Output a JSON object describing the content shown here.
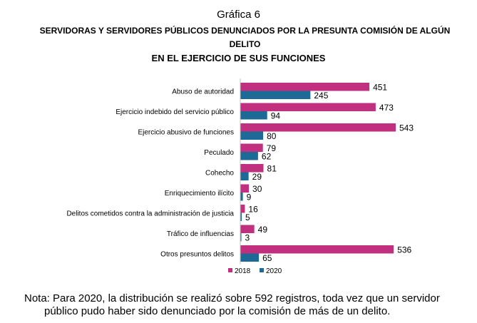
{
  "kicker": "Gráfica 6",
  "title_line1": "SERVIDORAS Y SERVIDORES PÚBLICOS DENUNCIADOS POR LA PRESUNTA COMISIÓN DE ALGÚN DELITO",
  "title_line2": "EN EL EJERCICIO DE SUS FUNCIONES",
  "note_line1": "Nota: Para 2020, la distribución se realizó sobre 592 registros, toda vez que un servidor",
  "note_line2": "público pudo haber sido denunciado por la comisión de más de un delito.",
  "colors": {
    "s2018": "#c0307f",
    "s2020": "#1d6a96",
    "axis": "#bfbfbf"
  },
  "chart_data": {
    "type": "bar",
    "orientation": "horizontal",
    "categories": [
      "Abuso de autoridad",
      "Ejercicio indebido del servicio público",
      "Ejercicio abusivo de funciones",
      "Peculado",
      "Cohecho",
      "Enriquecimiento ilícito",
      "Delitos cometidos contra la administración de justicia",
      "Tráfico de influencias",
      "Otros presuntos delitos"
    ],
    "series": [
      {
        "name": "2018",
        "color": "#c0307f",
        "values": [
          451,
          473,
          543,
          79,
          81,
          30,
          16,
          49,
          536
        ]
      },
      {
        "name": "2020",
        "color": "#1d6a96",
        "values": [
          245,
          94,
          80,
          62,
          29,
          9,
          5,
          3,
          65
        ]
      }
    ],
    "xlim": [
      0,
      543
    ],
    "data_labels": true,
    "legend": "bottom",
    "grid": false,
    "xlabel": "",
    "ylabel": ""
  }
}
